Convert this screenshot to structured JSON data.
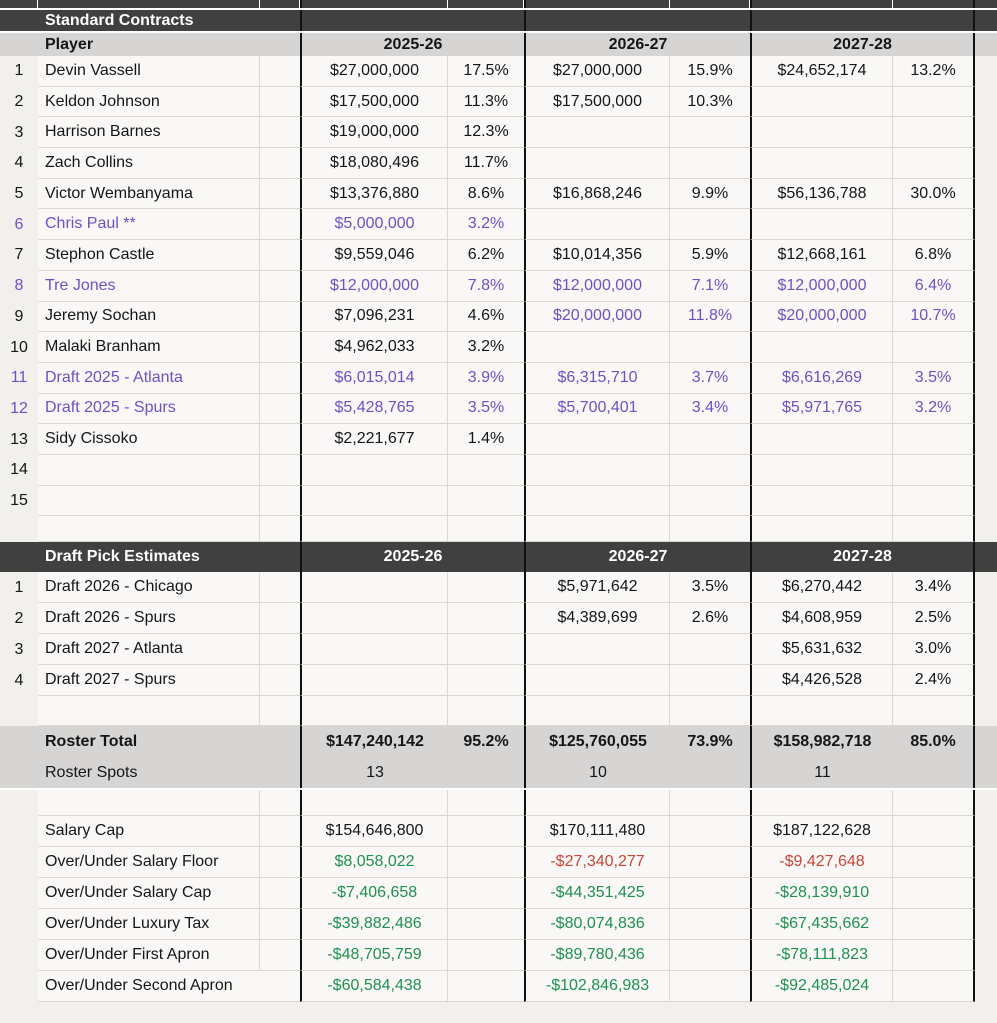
{
  "colors": {
    "page_background": "#f2f0ed",
    "cell_background": "#faf8f6",
    "gridline": "#dbd8d4",
    "section_header_dark": "#404040",
    "header_gray": "#d7d5d3",
    "highlight_purple": "#6c52c4",
    "positive_green": "#1e9150",
    "negative_red": "#c8463a",
    "thick_border": "#111111"
  },
  "standard_section": {
    "title": "Standard Contracts",
    "col_header": "Player",
    "season_headers": [
      "2025-26",
      "2026-27",
      "2027-28"
    ],
    "rows": [
      {
        "num": "1",
        "name": "Devin Vassell",
        "name_color": "black",
        "cells": [
          [
            "$27,000,000",
            "17.5%",
            "black"
          ],
          [
            "$27,000,000",
            "15.9%",
            "black"
          ],
          [
            "$24,652,174",
            "13.2%",
            "black"
          ]
        ]
      },
      {
        "num": "2",
        "name": "Keldon Johnson",
        "name_color": "black",
        "cells": [
          [
            "$17,500,000",
            "11.3%",
            "black"
          ],
          [
            "$17,500,000",
            "10.3%",
            "black"
          ],
          [
            "",
            "",
            "black"
          ]
        ]
      },
      {
        "num": "3",
        "name": "Harrison Barnes",
        "name_color": "black",
        "cells": [
          [
            "$19,000,000",
            "12.3%",
            "black"
          ],
          [
            "",
            "",
            "black"
          ],
          [
            "",
            "",
            "black"
          ]
        ]
      },
      {
        "num": "4",
        "name": "Zach Collins",
        "name_color": "black",
        "cells": [
          [
            "$18,080,496",
            "11.7%",
            "black"
          ],
          [
            "",
            "",
            "black"
          ],
          [
            "",
            "",
            "black"
          ]
        ]
      },
      {
        "num": "5",
        "name": "Victor Wembanyama",
        "name_color": "black",
        "cells": [
          [
            "$13,376,880",
            "8.6%",
            "black"
          ],
          [
            "$16,868,246",
            "9.9%",
            "black"
          ],
          [
            "$56,136,788",
            "30.0%",
            "black"
          ]
        ]
      },
      {
        "num": "6",
        "name": "Chris Paul **",
        "name_color": "purple",
        "cells": [
          [
            "$5,000,000",
            "3.2%",
            "purple"
          ],
          [
            "",
            "",
            "black"
          ],
          [
            "",
            "",
            "black"
          ]
        ]
      },
      {
        "num": "7",
        "name": "Stephon Castle",
        "name_color": "black",
        "cells": [
          [
            "$9,559,046",
            "6.2%",
            "black"
          ],
          [
            "$10,014,356",
            "5.9%",
            "black"
          ],
          [
            "$12,668,161",
            "6.8%",
            "black"
          ]
        ]
      },
      {
        "num": "8",
        "name": "Tre Jones",
        "name_color": "purple",
        "cells": [
          [
            "$12,000,000",
            "7.8%",
            "purple"
          ],
          [
            "$12,000,000",
            "7.1%",
            "purple"
          ],
          [
            "$12,000,000",
            "6.4%",
            "purple"
          ]
        ]
      },
      {
        "num": "9",
        "name": "Jeremy Sochan",
        "name_color": "black",
        "cells": [
          [
            "$7,096,231",
            "4.6%",
            "black"
          ],
          [
            "$20,000,000",
            "11.8%",
            "purple"
          ],
          [
            "$20,000,000",
            "10.7%",
            "purple"
          ]
        ]
      },
      {
        "num": "10",
        "name": "Malaki Branham",
        "name_color": "black",
        "cells": [
          [
            "$4,962,033",
            "3.2%",
            "black"
          ],
          [
            "",
            "",
            "black"
          ],
          [
            "",
            "",
            "black"
          ]
        ]
      },
      {
        "num": "11",
        "name": "Draft 2025 - Atlanta",
        "name_color": "purple",
        "cells": [
          [
            "$6,015,014",
            "3.9%",
            "purple"
          ],
          [
            "$6,315,710",
            "3.7%",
            "purple"
          ],
          [
            "$6,616,269",
            "3.5%",
            "purple"
          ]
        ]
      },
      {
        "num": "12",
        "name": "Draft 2025 - Spurs",
        "name_color": "purple",
        "cells": [
          [
            "$5,428,765",
            "3.5%",
            "purple"
          ],
          [
            "$5,700,401",
            "3.4%",
            "purple"
          ],
          [
            "$5,971,765",
            "3.2%",
            "purple"
          ]
        ]
      },
      {
        "num": "13",
        "name": "Sidy Cissoko",
        "name_color": "black",
        "cells": [
          [
            "$2,221,677",
            "1.4%",
            "black"
          ],
          [
            "",
            "",
            "black"
          ],
          [
            "",
            "",
            "black"
          ]
        ]
      },
      {
        "num": "14",
        "name": "",
        "name_color": "black",
        "cells": [
          [
            "",
            "",
            "black"
          ],
          [
            "",
            "",
            "black"
          ],
          [
            "",
            "",
            "black"
          ]
        ]
      },
      {
        "num": "15",
        "name": "",
        "name_color": "black",
        "cells": [
          [
            "",
            "",
            "black"
          ],
          [
            "",
            "",
            "black"
          ],
          [
            "",
            "",
            "black"
          ]
        ]
      }
    ]
  },
  "draft_section": {
    "title": "Draft Pick Estimates",
    "season_headers": [
      "2025-26",
      "2026-27",
      "2027-28"
    ],
    "rows": [
      {
        "num": "1",
        "name": "Draft 2026 - Chicago",
        "name_color": "black",
        "cells": [
          [
            "",
            "",
            "black"
          ],
          [
            "$5,971,642",
            "3.5%",
            "black"
          ],
          [
            "$6,270,442",
            "3.4%",
            "black"
          ]
        ]
      },
      {
        "num": "2",
        "name": "Draft 2026 - Spurs",
        "name_color": "black",
        "cells": [
          [
            "",
            "",
            "black"
          ],
          [
            "$4,389,699",
            "2.6%",
            "black"
          ],
          [
            "$4,608,959",
            "2.5%",
            "black"
          ]
        ]
      },
      {
        "num": "3",
        "name": "Draft 2027 - Atlanta",
        "name_color": "black",
        "cells": [
          [
            "",
            "",
            "black"
          ],
          [
            "",
            "",
            "black"
          ],
          [
            "$5,631,632",
            "3.0%",
            "black"
          ]
        ]
      },
      {
        "num": "4",
        "name": "Draft 2027 - Spurs",
        "name_color": "black",
        "cells": [
          [
            "",
            "",
            "black"
          ],
          [
            "",
            "",
            "black"
          ],
          [
            "$4,426,528",
            "2.4%",
            "black"
          ]
        ]
      }
    ]
  },
  "roster": {
    "total_label": "Roster Total",
    "total_cells": [
      [
        "$147,240,142",
        "95.2%"
      ],
      [
        "$125,760,055",
        "73.9%"
      ],
      [
        "$158,982,718",
        "85.0%"
      ]
    ],
    "spots_label": "Roster Spots",
    "spots": [
      "13",
      "10",
      "11"
    ]
  },
  "summary": {
    "rows": [
      {
        "label": "Salary Cap",
        "values": [
          [
            "$154,646,800",
            "black"
          ],
          [
            "$170,111,480",
            "black"
          ],
          [
            "$187,122,628",
            "black"
          ]
        ],
        "overflow": false
      },
      {
        "label": "Over/Under Salary Floor",
        "values": [
          [
            "$8,058,022",
            "green"
          ],
          [
            "-$27,340,277",
            "red"
          ],
          [
            "-$9,427,648",
            "red"
          ]
        ],
        "overflow": false
      },
      {
        "label": "Over/Under Salary Cap",
        "values": [
          [
            "-$7,406,658",
            "green"
          ],
          [
            "-$44,351,425",
            "green"
          ],
          [
            "-$28,139,910",
            "green"
          ]
        ],
        "overflow": false
      },
      {
        "label": "Over/Under Luxury Tax",
        "values": [
          [
            "-$39,882,486",
            "green"
          ],
          [
            "-$80,074,836",
            "green"
          ],
          [
            "-$67,435,662",
            "green"
          ]
        ],
        "overflow": false
      },
      {
        "label": "Over/Under First Apron",
        "values": [
          [
            "-$48,705,759",
            "green"
          ],
          [
            "-$89,780,436",
            "green"
          ],
          [
            "-$78,111,823",
            "green"
          ]
        ],
        "overflow": false
      },
      {
        "label": "Over/Under Second Apron",
        "values": [
          [
            "-$60,584,438",
            "green"
          ],
          [
            "-$102,846,983",
            "green"
          ],
          [
            "-$92,485,024",
            "green"
          ]
        ],
        "overflow": true
      }
    ]
  }
}
